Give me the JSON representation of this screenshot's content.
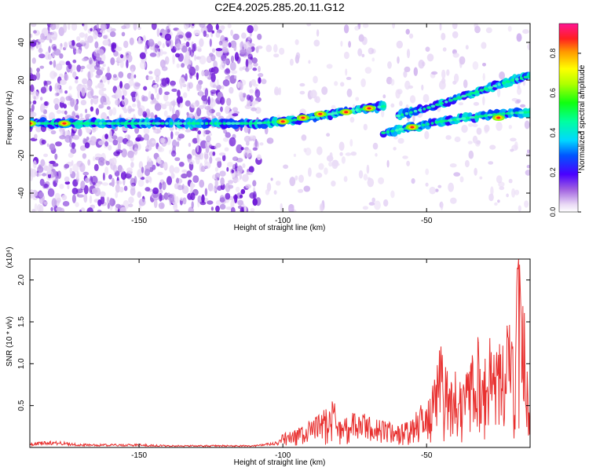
{
  "title": "C2E4.2025.285.20.11.G12",
  "chart_data": [
    {
      "type": "heatmap",
      "xlabel": "Height of straight line (km)",
      "ylabel": "Frequency (Hz)",
      "xlim": [
        -188,
        -14
      ],
      "ylim": [
        -50,
        50
      ],
      "xticks": [
        -150,
        -100,
        -50
      ],
      "yticks": [
        -40,
        -20,
        0,
        20,
        40
      ],
      "colorbar": {
        "label": "Normalized spectral amplitude",
        "range": [
          0,
          0.95
        ],
        "ticks": [
          0.0,
          0.2,
          0.4,
          0.6,
          0.8
        ]
      },
      "ridges": [
        {
          "name": "main ridge",
          "x": [
            -188,
            -170,
            -155,
            -140,
            -125,
            -110,
            -100,
            -90,
            -80,
            -65
          ],
          "freq_hz": [
            -3,
            -3,
            -3,
            -3,
            -3,
            -3,
            -2,
            0,
            3,
            6
          ]
        },
        {
          "name": "upper branch",
          "x": [
            -60,
            -50,
            -40,
            -30,
            -20,
            -14
          ],
          "freq_hz": [
            1,
            5,
            10,
            15,
            20,
            22
          ]
        },
        {
          "name": "lower branch",
          "x": [
            -65,
            -55,
            -45,
            -35,
            -25,
            -14
          ],
          "freq_hz": [
            -8,
            -5,
            -2,
            0,
            2,
            3
          ]
        }
      ],
      "peak_locations": [
        {
          "x": -188,
          "freq_hz": -3
        },
        {
          "x": -176,
          "freq_hz": -3
        },
        {
          "x": -100,
          "freq_hz": -2
        },
        {
          "x": -93,
          "freq_hz": 0
        },
        {
          "x": -87,
          "freq_hz": 2
        },
        {
          "x": -78,
          "freq_hz": 3
        },
        {
          "x": -70,
          "freq_hz": 5
        },
        {
          "x": -55,
          "freq_hz": -5
        },
        {
          "x": -25,
          "freq_hz": 0
        }
      ]
    },
    {
      "type": "line",
      "xlabel": "Height of straight line (km)",
      "ylabel": "SNR (10 * v/v)",
      "multiplier": "(x10⁴)",
      "xlim": [
        -188,
        -14
      ],
      "ylim": [
        0,
        2.25
      ],
      "xticks": [
        -150,
        -100,
        -50
      ],
      "yticks": [
        0.5,
        1.0,
        1.5,
        2.0
      ],
      "series": [
        {
          "name": "SNR",
          "color": "#e8302f",
          "x": [
            -188,
            -180,
            -170,
            -160,
            -150,
            -140,
            -130,
            -120,
            -110,
            -102,
            -100,
            -95,
            -90,
            -85,
            -82,
            -80,
            -75,
            -70,
            -65,
            -60,
            -55,
            -52,
            -50,
            -48,
            -45,
            -42,
            -40,
            -38,
            -35,
            -32,
            -30,
            -28,
            -25,
            -22,
            -20,
            -18,
            -17,
            -16,
            -15,
            -14
          ],
          "values": [
            0.04,
            0.06,
            0.03,
            0.03,
            0.03,
            0.02,
            0.02,
            0.02,
            0.02,
            0.05,
            0.15,
            0.2,
            0.3,
            0.45,
            0.52,
            0.3,
            0.4,
            0.35,
            0.3,
            0.25,
            0.3,
            0.5,
            0.45,
            0.65,
            1.2,
            0.7,
            0.9,
            0.7,
            0.9,
            1.25,
            0.9,
            1.3,
            1.1,
            1.45,
            1.2,
            2.25,
            1.5,
            1.6,
            0.9,
            0.5
          ]
        }
      ]
    }
  ]
}
